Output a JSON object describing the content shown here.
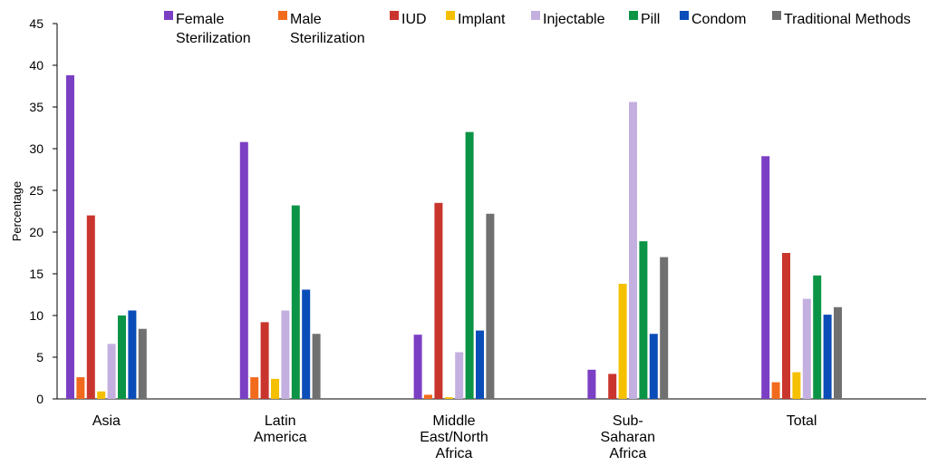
{
  "chart_data": {
    "type": "bar",
    "ylabel": "Percentage",
    "xlabel": "",
    "ylim": [
      0,
      45
    ],
    "yticks": [
      0,
      5,
      10,
      15,
      20,
      25,
      30,
      35,
      40,
      45
    ],
    "grid": false,
    "legend_position": "top",
    "categories": [
      [
        "Asia"
      ],
      [
        "Latin",
        "America"
      ],
      [
        "Middle",
        "East/North",
        "Africa"
      ],
      [
        "Sub-",
        "Saharan",
        "Africa"
      ],
      [
        "Total"
      ]
    ],
    "series": [
      {
        "name": [
          "Female",
          "Sterilization"
        ],
        "color": "#7B3FC4",
        "values": [
          38.8,
          30.8,
          7.7,
          3.5,
          29.1
        ]
      },
      {
        "name": [
          "Male",
          "Sterilization"
        ],
        "color": "#F26B1D",
        "values": [
          2.6,
          2.6,
          0.5,
          0,
          2.0
        ]
      },
      {
        "name": [
          "IUD"
        ],
        "color": "#C9352D",
        "values": [
          22.0,
          9.2,
          23.5,
          3.0,
          17.5
        ]
      },
      {
        "name": [
          "Implant"
        ],
        "color": "#F5C000",
        "values": [
          0.9,
          2.4,
          0.2,
          13.8,
          3.2
        ]
      },
      {
        "name": [
          "Injectable"
        ],
        "color": "#C3B0E0",
        "values": [
          6.6,
          10.6,
          5.6,
          35.6,
          12.0
        ]
      },
      {
        "name": [
          "Pill"
        ],
        "color": "#0C9446",
        "values": [
          10.0,
          23.2,
          32.0,
          18.9,
          14.8
        ]
      },
      {
        "name": [
          "Condom"
        ],
        "color": "#0B4DB8",
        "values": [
          10.6,
          13.1,
          8.2,
          7.8,
          10.1
        ]
      },
      {
        "name": [
          "Traditional Methods"
        ],
        "color": "#707070",
        "values": [
          8.4,
          7.8,
          22.2,
          17.0,
          11.0
        ]
      }
    ]
  }
}
